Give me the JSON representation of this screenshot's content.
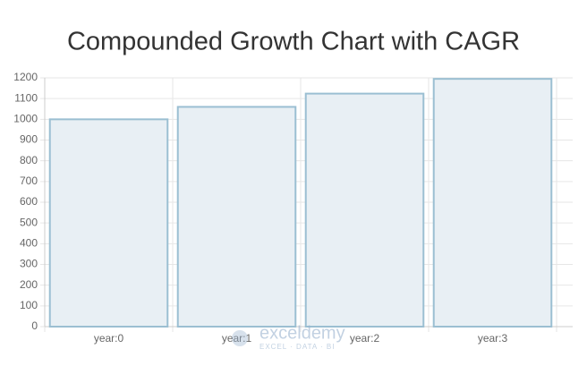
{
  "chart_data": {
    "type": "bar",
    "title": "Compounded Growth Chart with CAGR",
    "categories": [
      "year:0",
      "year:1",
      "year:2",
      "year:3"
    ],
    "values": [
      1000,
      1060,
      1124,
      1195
    ],
    "color": "#e8eff4",
    "border_color": "#9bbfd2",
    "ylim": [
      0,
      1200
    ],
    "yticks": [
      0,
      100,
      200,
      300,
      400,
      500,
      600,
      700,
      800,
      900,
      1000,
      1100,
      1200
    ],
    "grid": true,
    "watermark": "exceldemy",
    "watermark_tagline": "EXCEL · DATA · BI"
  }
}
